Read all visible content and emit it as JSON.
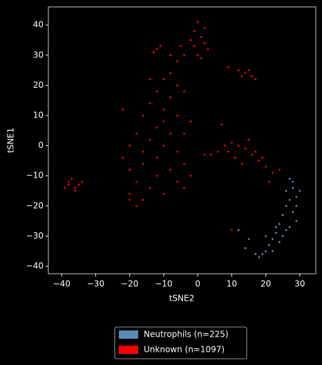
{
  "chart_data": {
    "type": "scatter",
    "xlabel": "tSNE2",
    "ylabel": "tSNE1",
    "xlim": [
      -43.9,
      34.7
    ],
    "ylim": [
      -42.5,
      46
    ],
    "xticks": [
      {
        "value": -40,
        "label": "−40"
      },
      {
        "value": -30,
        "label": "−30"
      },
      {
        "value": -20,
        "label": "−20"
      },
      {
        "value": -10,
        "label": "−10"
      },
      0,
      10,
      20,
      30
    ],
    "yticks": [
      {
        "value": -40,
        "label": "−40"
      },
      {
        "value": -30,
        "label": "−30"
      },
      {
        "value": -20,
        "label": "−20"
      },
      {
        "value": -10,
        "label": "−10"
      },
      0,
      10,
      20,
      30,
      40
    ],
    "legend": "bottom-outside",
    "series": [
      {
        "name": "Neutrophils (n=225)",
        "color": "#5b8cb8",
        "x": [
          27,
          28,
          29,
          27,
          26,
          28,
          29,
          25,
          24,
          26,
          23,
          22,
          24,
          21,
          20,
          19,
          18,
          17,
          22,
          25,
          27,
          29,
          30,
          26,
          23,
          15,
          14,
          12,
          20,
          28
        ],
        "values": [
          -11,
          -14,
          -17,
          -18,
          -20,
          -22,
          -25,
          -23,
          -26,
          -28,
          -29,
          -31,
          -32,
          -33,
          -35,
          -36,
          -37,
          -36,
          -35,
          -30,
          -27,
          -20,
          -15,
          -15,
          -27,
          -31,
          -34,
          -28,
          -30,
          -12
        ]
      },
      {
        "name": "Unknown (n=1097)",
        "color": "#ff0000",
        "x": [
          -38,
          -36,
          -37,
          -39,
          -35,
          -36,
          -38,
          -34,
          0,
          -1,
          1,
          2,
          -1,
          3,
          0,
          2,
          -2,
          1,
          -12,
          -11,
          -13,
          -8,
          -6,
          -4,
          -5,
          12,
          14,
          16,
          17,
          13,
          15,
          9,
          -10,
          -12,
          -8,
          -14,
          -10,
          -6,
          -4,
          -16,
          -12,
          -8,
          -14,
          -10,
          -6,
          -12,
          -16,
          -20,
          -18,
          -14,
          -10,
          -16,
          -20,
          -12,
          -8,
          -4,
          -6,
          -2,
          -22,
          -20,
          -18,
          -8,
          -14,
          -6,
          -10,
          -4,
          -20,
          -18,
          -22,
          -16,
          -2,
          -4,
          6,
          8,
          10,
          12,
          14,
          16,
          18,
          20,
          22,
          24,
          11,
          13,
          9,
          15,
          17,
          19,
          4,
          2,
          7,
          21,
          10
        ],
        "values": [
          -12,
          -14,
          -11,
          -14,
          -13,
          -15,
          -13,
          -12,
          41,
          38,
          36,
          34,
          33,
          32,
          30,
          39,
          35,
          29,
          32,
          33,
          31,
          30,
          28,
          30,
          33,
          25,
          24,
          23,
          22,
          23,
          25,
          26,
          22,
          18,
          16,
          14,
          12,
          20,
          18,
          10,
          6,
          4,
          2,
          0,
          -2,
          -4,
          -6,
          -8,
          -12,
          -14,
          -16,
          -18,
          -18,
          -10,
          -8,
          -6,
          -12,
          -10,
          12,
          0,
          4,
          24,
          22,
          10,
          8,
          -14,
          -16,
          -20,
          -4,
          -2,
          8,
          4,
          -2,
          0,
          1,
          0,
          -1,
          -3,
          -5,
          -7,
          -9,
          -8,
          -4,
          -6,
          -2,
          2,
          -2,
          -4,
          -3,
          -3,
          7,
          -12,
          -28
        ]
      }
    ]
  }
}
